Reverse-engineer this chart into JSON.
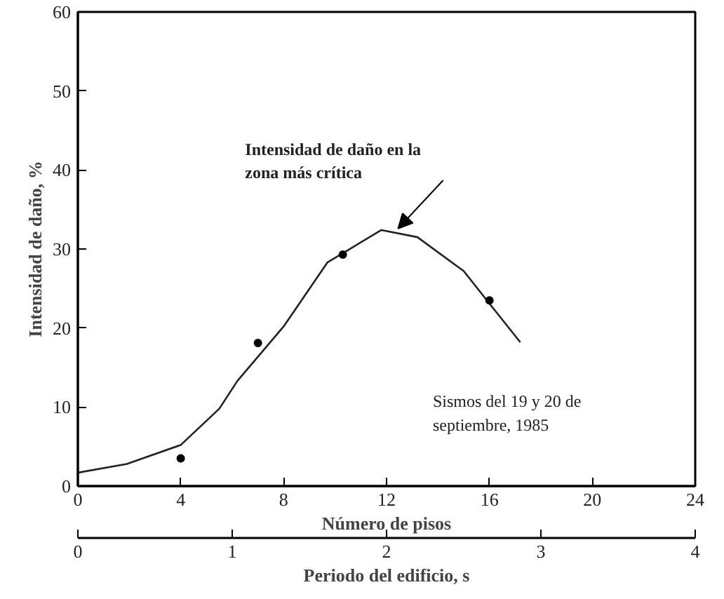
{
  "chart_data": {
    "type": "line",
    "xlabel": "Número de pisos",
    "ylabel": "Intensidad de daño, %",
    "x2label": "Periodo del edificio, s",
    "xlim": [
      0,
      24
    ],
    "xticks": [
      0,
      4,
      8,
      12,
      16,
      20,
      24
    ],
    "ylim": [
      0,
      60
    ],
    "yticks": [
      0,
      10,
      20,
      30,
      40,
      50,
      60
    ],
    "x2lim": [
      0,
      4
    ],
    "x2ticks": [
      0,
      1,
      2,
      3,
      4
    ],
    "grid": false,
    "series": [
      {
        "color": "#222222",
        "x": [
          0,
          1.9,
          4,
          5.5,
          6.2,
          8,
          9.7,
          11.8,
          13.2,
          15,
          16,
          17.2
        ],
        "values": [
          1.7,
          2.8,
          5.2,
          9.8,
          13.3,
          20.2,
          28.3,
          32.4,
          31.5,
          27.2,
          23.1,
          18.2
        ]
      },
      {
        "type": "scatter",
        "marker": "circle",
        "color": "#000000",
        "x": [
          4,
          7,
          10.3,
          16
        ],
        "values": [
          3.5,
          18.1,
          29.3,
          23.5
        ]
      }
    ],
    "annotations": [
      {
        "text": "Intensidad de daño en la\nzona más crítica",
        "x": 12.3,
        "y": 32.4
      },
      "Sismos del 19 y 20 de\nseptiembre, 1985"
    ]
  }
}
